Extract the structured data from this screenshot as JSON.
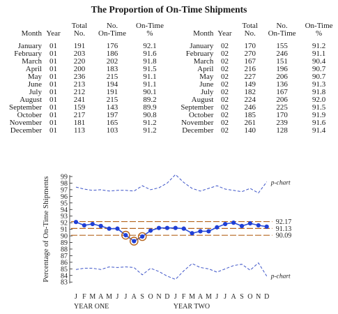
{
  "title": "The Proportion of On-Time Shipments",
  "table": {
    "headers": [
      "Month",
      "Year",
      "Total\nNo.",
      "No.\nOn-Time",
      "On-Time\n%"
    ],
    "left": [
      [
        "January",
        "01",
        "191",
        "176",
        "92.1"
      ],
      [
        "February",
        "01",
        "203",
        "186",
        "91.6"
      ],
      [
        "March",
        "01",
        "220",
        "202",
        "91.8"
      ],
      [
        "April",
        "01",
        "200",
        "183",
        "91.5"
      ],
      [
        "May",
        "01",
        "236",
        "215",
        "91.1"
      ],
      [
        "June",
        "01",
        "213",
        "194",
        "91.1"
      ],
      [
        "July",
        "01",
        "212",
        "191",
        "90.1"
      ],
      [
        "August",
        "01",
        "241",
        "215",
        "89.2"
      ],
      [
        "September",
        "01",
        "159",
        "143",
        "89.9"
      ],
      [
        "October",
        "01",
        "217",
        "197",
        "90.8"
      ],
      [
        "November",
        "01",
        "181",
        "165",
        "91.2"
      ],
      [
        "December",
        "01",
        "113",
        "103",
        "91.2"
      ]
    ],
    "right": [
      [
        "January",
        "02",
        "170",
        "155",
        "91.2"
      ],
      [
        "February",
        "02",
        "270",
        "246",
        "91.1"
      ],
      [
        "March",
        "02",
        "167",
        "151",
        "90.4"
      ],
      [
        "April",
        "02",
        "216",
        "196",
        "90.7"
      ],
      [
        "May",
        "02",
        "227",
        "206",
        "90.7"
      ],
      [
        "June",
        "02",
        "149",
        "136",
        "91.3"
      ],
      [
        "July",
        "02",
        "182",
        "167",
        "91.8"
      ],
      [
        "August",
        "02",
        "224",
        "206",
        "92.0"
      ],
      [
        "September",
        "02",
        "246",
        "225",
        "91.5"
      ],
      [
        "October",
        "02",
        "185",
        "170",
        "91.9"
      ],
      [
        "November",
        "02",
        "261",
        "239",
        "91.6"
      ],
      [
        "December",
        "02",
        "140",
        "128",
        "91.4"
      ]
    ]
  },
  "chart_data": {
    "type": "line",
    "ylabel": "Percentage of On-Time Shipments",
    "ylim": [
      83,
      99
    ],
    "yticks": [
      83,
      84,
      85,
      86,
      87,
      88,
      89,
      90,
      91,
      92,
      93,
      94,
      95,
      96,
      97,
      98,
      99
    ],
    "categories": [
      "J",
      "F",
      "M",
      "A",
      "M",
      "J",
      "J",
      "A",
      "S",
      "O",
      "N",
      "D",
      "J",
      "F",
      "M",
      "A",
      "M",
      "J",
      "J",
      "A",
      "S",
      "O",
      "N",
      "D"
    ],
    "group_labels": [
      "YEAR ONE",
      "YEAR TWO"
    ],
    "series": [
      {
        "values": [
          92.1,
          91.6,
          91.8,
          91.5,
          91.1,
          91.1,
          90.1,
          89.2,
          89.9,
          90.8,
          91.2,
          91.2,
          91.2,
          91.1,
          90.4,
          90.7,
          90.7,
          91.3,
          91.8,
          92.0,
          91.5,
          91.9,
          91.6,
          91.4
        ]
      }
    ],
    "upper_limit": [
      97.4,
      97.1,
      96.9,
      97.0,
      96.8,
      96.9,
      96.9,
      96.8,
      97.6,
      97.0,
      97.3,
      98.0,
      99.3,
      98.1,
      97.2,
      96.8,
      97.2,
      97.6,
      97.1,
      96.9,
      96.7,
      97.2,
      96.5,
      98.2
    ],
    "lower_limit": [
      84.9,
      85.1,
      85.1,
      84.9,
      85.3,
      85.2,
      85.3,
      85.2,
      84.1,
      85.1,
      84.6,
      83.9,
      83.4,
      84.7,
      85.8,
      85.2,
      85.0,
      84.5,
      85.0,
      85.5,
      85.7,
      84.8,
      85.9,
      83.9
    ],
    "limit_label": "p-chart",
    "reference_lines": [
      {
        "value": 92.17,
        "label": "92.17"
      },
      {
        "value": 91.13,
        "label": "91.13"
      },
      {
        "value": 90.09,
        "label": "90.09"
      }
    ],
    "circled_points": [
      6,
      7,
      8
    ],
    "colors": {
      "point": "#1f3fd6",
      "line": "#2b4fd8",
      "limit": "#3d54c8",
      "reference": "#b5651d",
      "circle": "#b5651d"
    }
  }
}
